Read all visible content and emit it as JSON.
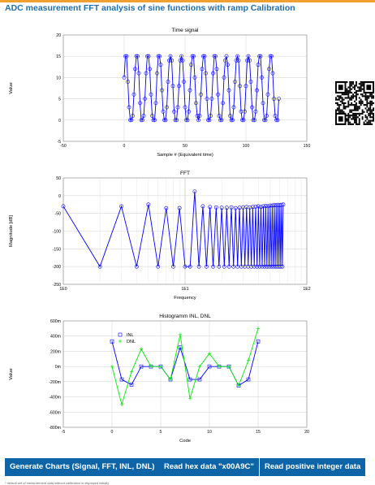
{
  "page": {
    "title": "ADC measurement FFT analysis of sine functions with ramp Calibration",
    "footer": "* default set of measurement data without calibration is displayed initially"
  },
  "buttons": {
    "generate": "Generate Charts (Signal, FFT, INL, DNL)",
    "read_hex": "Read hex data \"x00A9C\"",
    "read_int": "Read positive integer data"
  },
  "colors": {
    "accent": "#f0a030",
    "title": "#1e6fb0",
    "button": "#0d64a6",
    "series_blue": "#0000ff",
    "series_green": "#00ee00"
  },
  "qr_icon": "qr-code-icon",
  "chart_data": [
    {
      "type": "line",
      "title": "Time signal",
      "xlabel": "Sample # (Equivalent time)",
      "ylabel": "Value",
      "xlim": [
        -50,
        150
      ],
      "ylim": [
        -5,
        20
      ],
      "xticks": [
        -50,
        0,
        50,
        100,
        150
      ],
      "yticks": [
        -5,
        0,
        5,
        10,
        15,
        20
      ],
      "grid": true,
      "series": [
        {
          "markers": "circle",
          "x": [
            0,
            1,
            2,
            3,
            4,
            5,
            6,
            7,
            8,
            9,
            10,
            11,
            12,
            13,
            14,
            15,
            16,
            17,
            18,
            19,
            20,
            21,
            22,
            23,
            24,
            25,
            26,
            27,
            28,
            29,
            30,
            31,
            32,
            33,
            34,
            35,
            36,
            37,
            38,
            39,
            40,
            41,
            42,
            43,
            44,
            45,
            46,
            47,
            48,
            49,
            50,
            51,
            52,
            53,
            54,
            55,
            56,
            57,
            58,
            59,
            60,
            61,
            62,
            63,
            64,
            65,
            66,
            67,
            68,
            69,
            70,
            71,
            72,
            73,
            74,
            75,
            76,
            77,
            78,
            79,
            80,
            81,
            82,
            83,
            84,
            85,
            86,
            87,
            88,
            89,
            90,
            91,
            92,
            93,
            94,
            95,
            96,
            97,
            98,
            99,
            100,
            101,
            102,
            103,
            104,
            105,
            106,
            107,
            108,
            109,
            110,
            111,
            112,
            113,
            114,
            115,
            116,
            117,
            118,
            119,
            120,
            121,
            122,
            123,
            124,
            125,
            126,
            127
          ],
          "y": [
            10,
            15,
            15,
            9,
            3,
            0,
            0,
            1,
            6,
            12,
            15,
            15,
            11,
            4,
            0,
            0,
            1,
            5,
            11,
            15,
            15,
            12,
            6,
            1,
            0,
            0,
            4,
            11,
            15,
            15,
            13,
            7,
            2,
            0,
            0,
            3,
            9,
            14,
            15,
            14,
            8,
            2,
            0,
            0,
            3,
            8,
            14,
            15,
            14,
            9,
            3,
            0,
            0,
            2,
            7,
            13,
            15,
            15,
            10,
            4,
            1,
            0,
            1,
            6,
            12,
            15,
            15,
            11,
            5,
            0,
            0,
            1,
            5,
            11,
            15,
            15,
            12,
            6,
            1,
            0,
            0,
            4,
            10,
            14,
            15,
            13,
            7,
            1,
            0,
            0,
            3,
            9,
            14,
            15,
            14,
            8,
            2,
            0,
            0,
            2,
            8,
            14,
            15,
            14,
            9,
            3,
            0,
            0,
            2,
            7,
            13,
            15,
            15,
            10,
            4,
            0,
            0,
            1,
            6,
            12,
            15,
            15,
            11,
            5,
            1,
            0,
            0,
            5
          ]
        }
      ]
    },
    {
      "type": "line",
      "title": "FFT",
      "xlabel": "Frequency",
      "ylabel": "Magnitude [dB]",
      "xscale": "log",
      "xlim": [
        1,
        100
      ],
      "ylim": [
        -250,
        50
      ],
      "xticks": [
        "1E0",
        "1E1",
        "1E2"
      ],
      "yticks": [
        -250,
        -200,
        -150,
        -100,
        -50,
        0,
        50
      ],
      "grid": true,
      "series": [
        {
          "markers": "circle",
          "x": [
            1,
            2,
            3,
            4,
            5,
            6,
            7,
            8,
            9,
            10,
            11,
            12,
            13,
            14,
            15,
            16,
            17,
            18,
            19,
            20,
            21,
            22,
            23,
            24,
            25,
            26,
            27,
            28,
            29,
            30,
            31,
            32,
            33,
            34,
            35,
            36,
            37,
            38,
            39,
            40,
            41,
            42,
            43,
            44,
            45,
            46,
            47,
            48,
            49,
            50,
            51,
            52,
            53,
            54,
            55,
            56,
            57,
            58,
            59,
            60,
            61,
            62,
            63,
            64
          ],
          "y": [
            -30,
            -200,
            -30,
            -200,
            -25,
            -200,
            -35,
            -200,
            -35,
            -200,
            -200,
            12,
            -200,
            -30,
            -200,
            -32,
            -200,
            -33,
            -200,
            -34,
            -200,
            -34,
            -200,
            -33,
            -200,
            -35,
            -200,
            -34,
            -200,
            -33,
            -200,
            -32,
            -200,
            -33,
            -200,
            -32,
            -200,
            -31,
            -200,
            -30,
            -200,
            -32,
            -200,
            -30,
            -200,
            -29,
            -200,
            -30,
            -200,
            -28,
            -200,
            -28,
            -200,
            -27,
            -200,
            -27,
            -200,
            -26,
            -200,
            -27,
            -200,
            -26,
            -200,
            -25
          ]
        }
      ]
    },
    {
      "type": "line",
      "title": "Histogramm INL, DNL",
      "xlabel": "Code",
      "ylabel": "Value",
      "xlim": [
        -5,
        20
      ],
      "ylim": [
        -800,
        600
      ],
      "xticks": [
        -5,
        0,
        5,
        10,
        15,
        20
      ],
      "ytick_labels": [
        "-800m",
        "-600m",
        "-400m",
        "-200m",
        "0m",
        "200m",
        "400m",
        "600m"
      ],
      "yticks": [
        -800,
        -600,
        -400,
        -200,
        0,
        200,
        400,
        600
      ],
      "grid": true,
      "legend": "top-left",
      "series": [
        {
          "name": "INL",
          "markers": "square",
          "x": [
            0,
            1,
            2,
            3,
            4,
            5,
            6,
            7,
            8,
            9,
            10,
            11,
            12,
            13,
            14,
            15
          ],
          "y": [
            330,
            -170,
            -240,
            0,
            0,
            0,
            -170,
            250,
            -170,
            -170,
            0,
            0,
            0,
            -250,
            -170,
            330
          ]
        },
        {
          "name": "DNL",
          "markers": "plus",
          "x": [
            0,
            1,
            2,
            3,
            4,
            5,
            6,
            7,
            8,
            9,
            10,
            11,
            12,
            13,
            14,
            15
          ],
          "y": [
            0,
            -500,
            -70,
            230,
            0,
            0,
            -170,
            420,
            -420,
            0,
            170,
            0,
            0,
            -250,
            80,
            500
          ]
        }
      ]
    }
  ]
}
